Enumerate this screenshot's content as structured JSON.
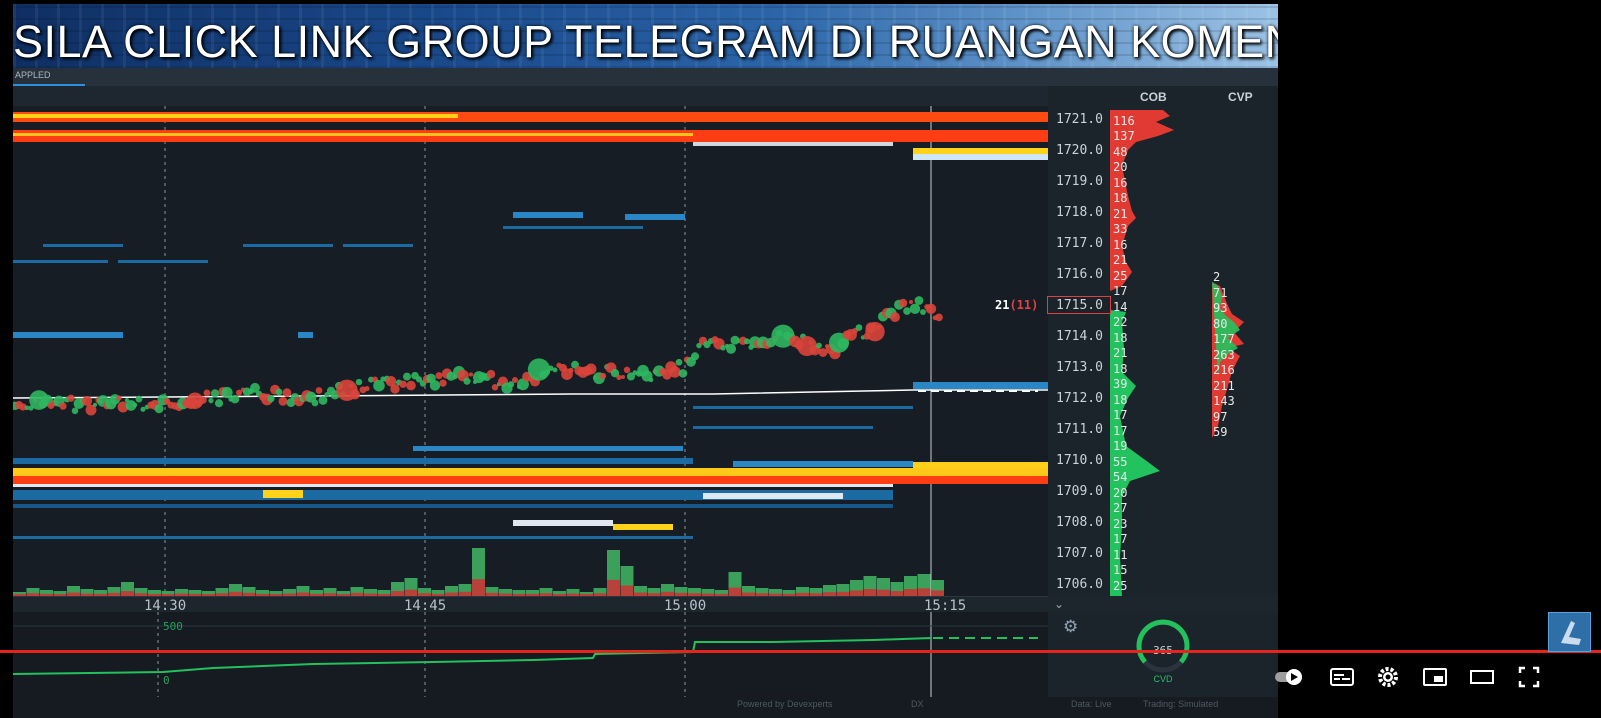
{
  "banner": {
    "text": "SILA CLICK LINK GROUP TELEGRAM DI RUANGAN KOMEN"
  },
  "tab": {
    "label": "APPLED"
  },
  "ladder": {
    "cob_header": "COB",
    "cvp_header": "CVP",
    "prices": [
      "1721.0",
      "1720.0",
      "1719.0",
      "1718.0",
      "1717.0",
      "1716.0",
      "1715.0",
      "1714.0",
      "1713.0",
      "1712.0",
      "1711.0",
      "1710.0",
      "1709.0",
      "1708.0",
      "1707.0",
      "1706.0"
    ],
    "cob_ask": [
      "116",
      "137",
      "48",
      "20",
      "16",
      "18",
      "21",
      "33",
      "16",
      "21",
      "25",
      "17",
      "14"
    ],
    "cob_bid": [
      "22",
      "18",
      "21",
      "18",
      "39",
      "18",
      "17",
      "17",
      "19",
      "55",
      "54",
      "20",
      "27",
      "23",
      "17",
      "11",
      "15",
      "25"
    ],
    "cvp": [
      "2",
      "71",
      "93",
      "80",
      "177",
      "263",
      "216",
      "211",
      "143",
      "97",
      "59"
    ],
    "position_label": {
      "size": "21",
      "pending": "(11)"
    }
  },
  "time_axis": {
    "labels": [
      "14:30",
      "14:45",
      "15:00",
      "15:15"
    ]
  },
  "cvd": {
    "scale_label": "500",
    "zero_label": "0",
    "gauge_value": "365",
    "gauge_label": "CVD"
  },
  "footer": {
    "powered": "Powered by Devexperts",
    "dx": "DX",
    "data": "Data: Live",
    "trading": "Trading: Simulated"
  },
  "youtube": {
    "controls": [
      "autoplay-toggle",
      "subtitles",
      "settings",
      "miniplayer",
      "theater",
      "fullscreen"
    ]
  },
  "colors": {
    "ask": "#e03a32",
    "bid": "#22c35e",
    "heat_low": "#1d6fa8",
    "heat_high": "#ff3a12",
    "progress": "#e4251d"
  }
}
